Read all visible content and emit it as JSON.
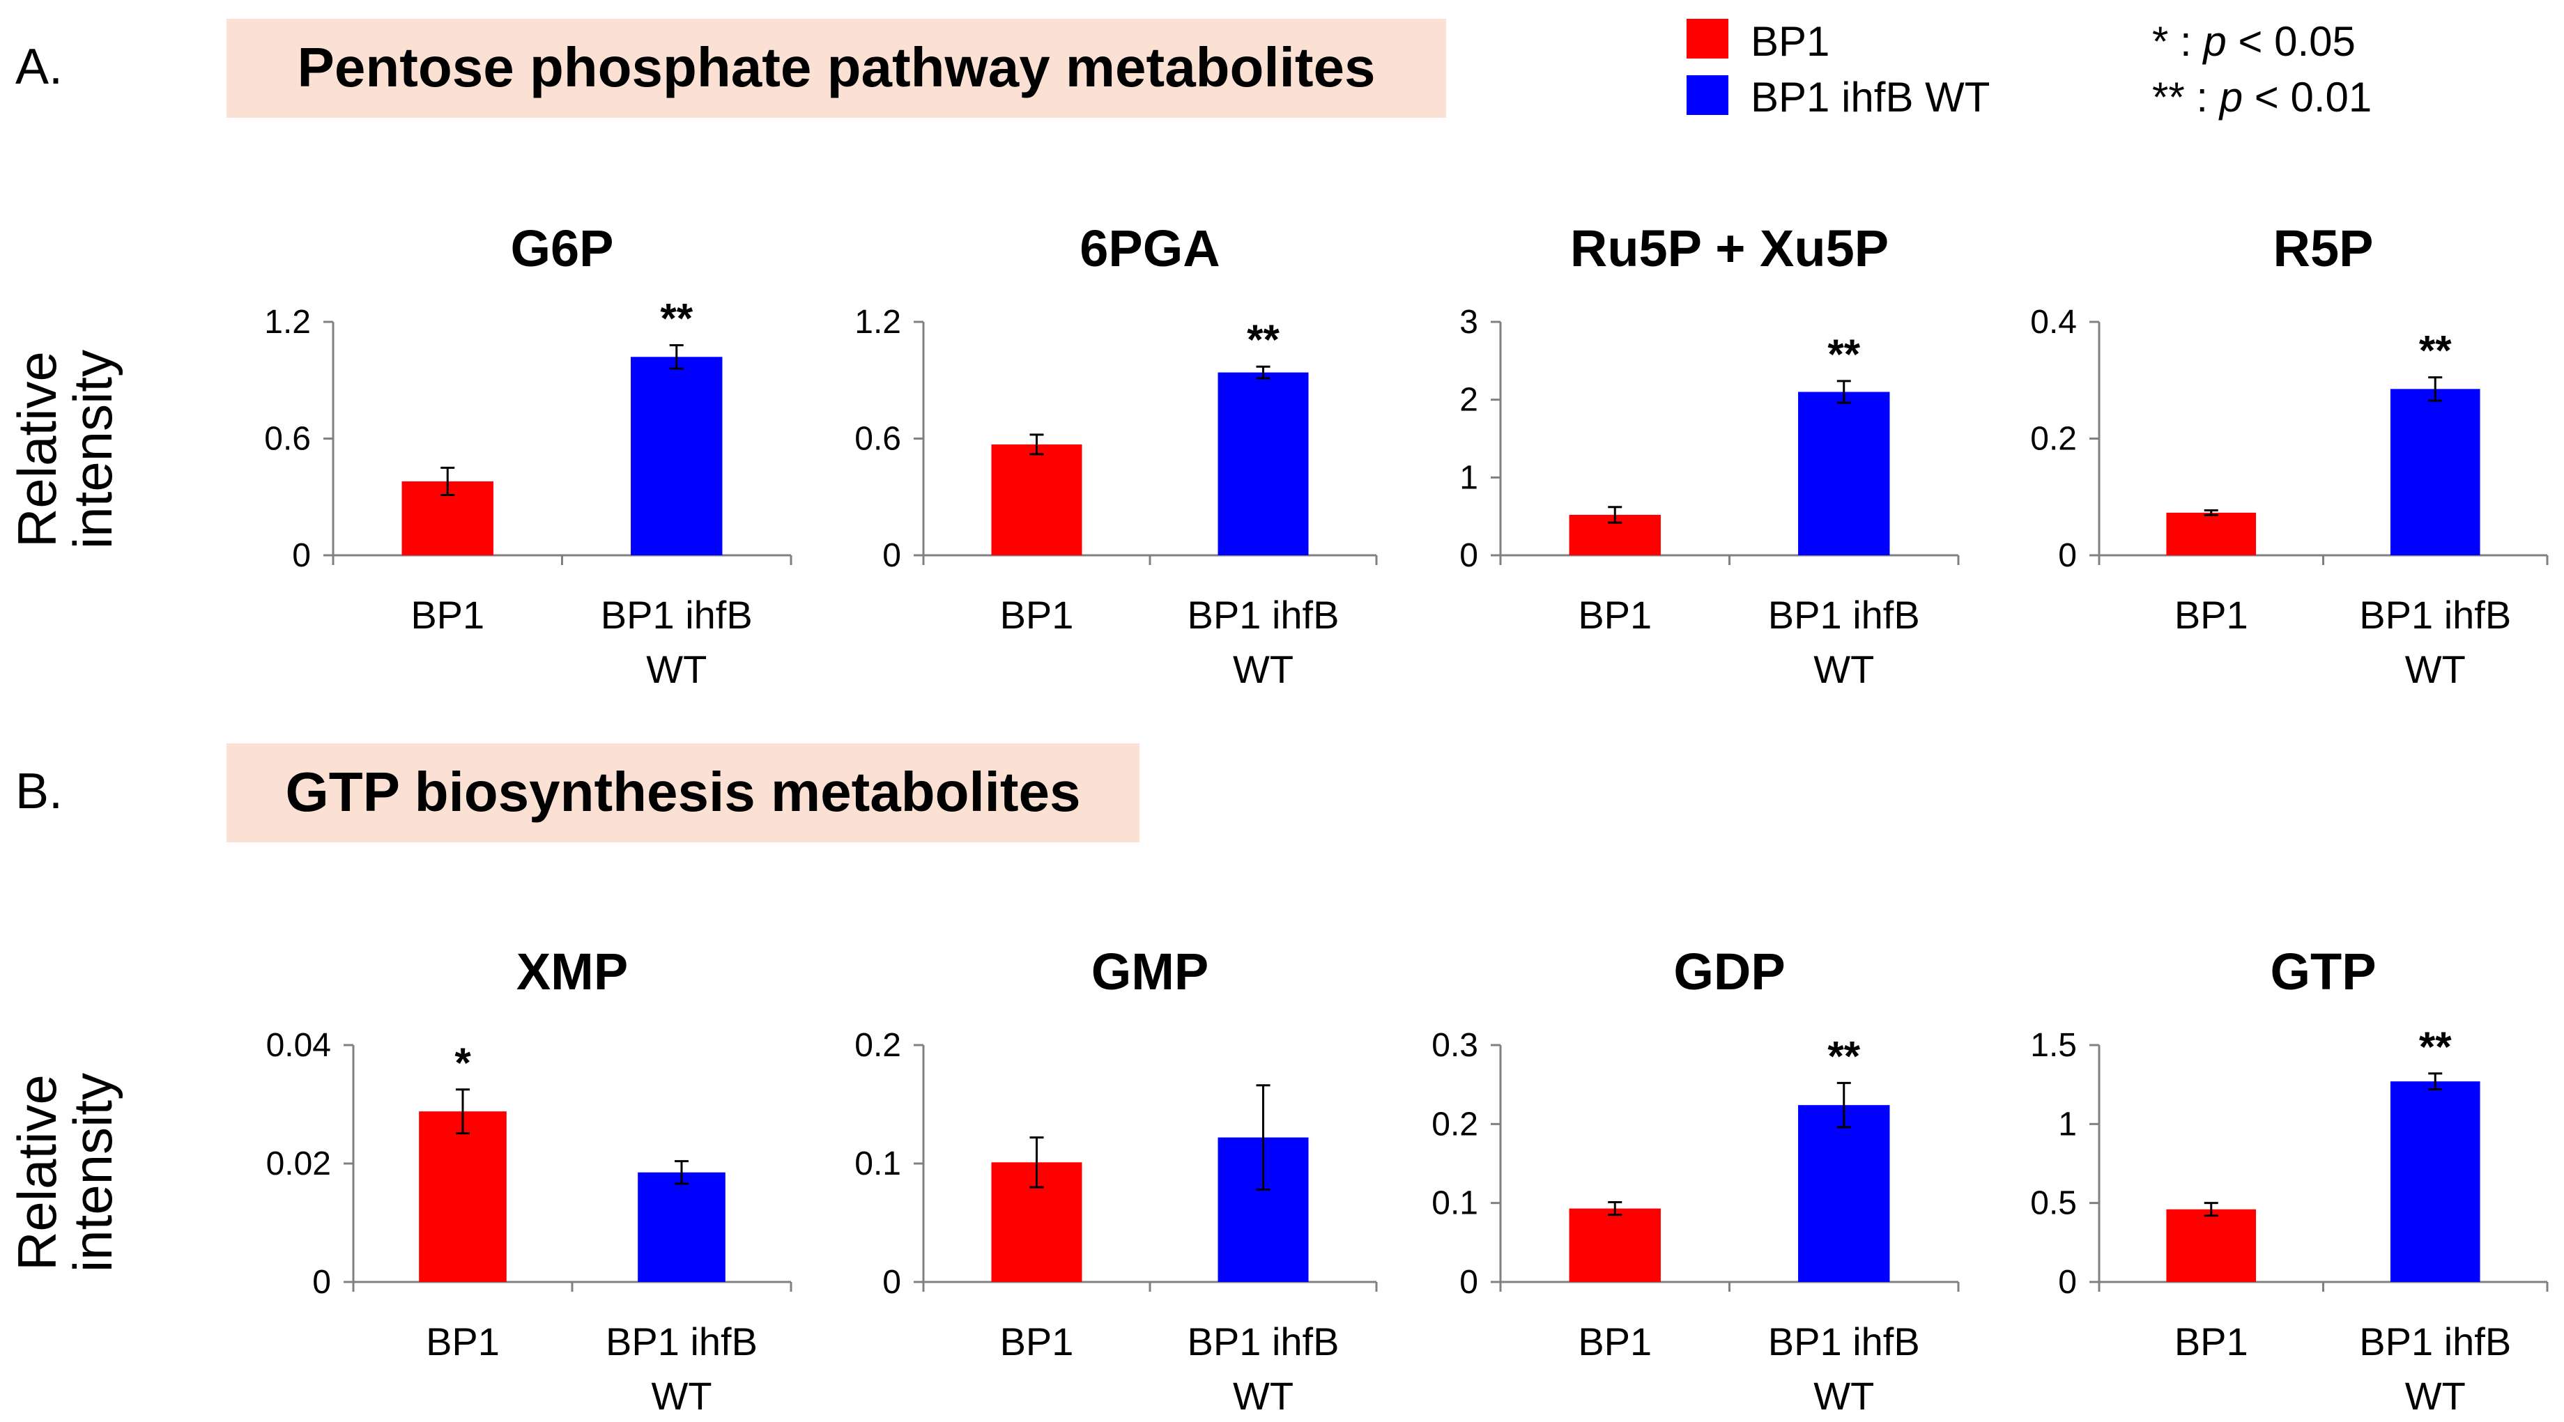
{
  "panels": [
    {
      "label": "A.",
      "heading": "Pentose phosphate pathway metabolites"
    },
    {
      "label": "B.",
      "heading": "GTP biosynthesis metabolites"
    }
  ],
  "legend": {
    "entries": [
      {
        "label": "BP1",
        "color": "#ff0000"
      },
      {
        "label": "BP1 ihfB WT",
        "color": "#0000ff"
      }
    ],
    "significance": [
      {
        "stars": "*",
        "sep": " : ",
        "p": "p",
        "rest": " < 0.05"
      },
      {
        "stars": "**",
        "sep": " : ",
        "p": "p",
        "rest": " < 0.01"
      }
    ]
  },
  "ylabel_lines": [
    "Relative",
    "intensity"
  ],
  "colors": {
    "bp1": "#ff0000",
    "ihfb": "#0000ff",
    "panel_bg": "#fbe1d4",
    "axis": "#808080"
  },
  "chart_data": [
    {
      "type": "bar",
      "title": "G6P",
      "categories": [
        [
          "BP1"
        ],
        [
          "BP1 ihfB",
          "WT"
        ]
      ],
      "values": [
        0.38,
        1.02
      ],
      "errors": [
        0.07,
        0.06
      ],
      "sig": [
        "",
        "**"
      ],
      "ylim": [
        0,
        1.2
      ],
      "yticks": [
        0,
        0.6,
        1.2
      ],
      "ytick_labels": [
        "0",
        "0.6",
        "1.2"
      ]
    },
    {
      "type": "bar",
      "title": "6PGA",
      "categories": [
        [
          "BP1"
        ],
        [
          "BP1 ihfB",
          "WT"
        ]
      ],
      "values": [
        0.57,
        0.94
      ],
      "errors": [
        0.05,
        0.03
      ],
      "sig": [
        "",
        "**"
      ],
      "ylim": [
        0,
        1.2
      ],
      "yticks": [
        0,
        0.6,
        1.2
      ],
      "ytick_labels": [
        "0",
        "0.6",
        "1.2"
      ]
    },
    {
      "type": "bar",
      "title": "Ru5P + Xu5P",
      "categories": [
        [
          "BP1"
        ],
        [
          "BP1 ihfB",
          "WT"
        ]
      ],
      "values": [
        0.52,
        2.1
      ],
      "errors": [
        0.1,
        0.14
      ],
      "sig": [
        "",
        "**"
      ],
      "ylim": [
        0,
        3
      ],
      "yticks": [
        0,
        1,
        2,
        3
      ],
      "ytick_labels": [
        "0",
        "1",
        "2",
        "3"
      ]
    },
    {
      "type": "bar",
      "title": "R5P",
      "categories": [
        [
          "BP1"
        ],
        [
          "BP1 ihfB",
          "WT"
        ]
      ],
      "values": [
        0.073,
        0.285
      ],
      "errors": [
        0.004,
        0.02
      ],
      "sig": [
        "",
        "**"
      ],
      "ylim": [
        0,
        0.4
      ],
      "yticks": [
        0,
        0.2,
        0.4
      ],
      "ytick_labels": [
        "0",
        "0.2",
        "0.4"
      ]
    },
    {
      "type": "bar",
      "title": "XMP",
      "categories": [
        [
          "BP1"
        ],
        [
          "BP1 ihfB",
          "WT"
        ]
      ],
      "values": [
        0.0288,
        0.0185
      ],
      "errors": [
        0.0037,
        0.0019
      ],
      "sig": [
        "*",
        ""
      ],
      "ylim": [
        0,
        0.04
      ],
      "yticks": [
        0,
        0.02,
        0.04
      ],
      "ytick_labels": [
        "0",
        "0.02",
        "0.04"
      ]
    },
    {
      "type": "bar",
      "title": "GMP",
      "categories": [
        [
          "BP1"
        ],
        [
          "BP1 ihfB",
          "WT"
        ]
      ],
      "values": [
        0.101,
        0.122
      ],
      "errors": [
        0.021,
        0.044
      ],
      "sig": [
        "",
        ""
      ],
      "ylim": [
        0,
        0.2
      ],
      "yticks": [
        0,
        0.1,
        0.2
      ],
      "ytick_labels": [
        "0",
        "0.1",
        "0.2"
      ]
    },
    {
      "type": "bar",
      "title": "GDP",
      "categories": [
        [
          "BP1"
        ],
        [
          "BP1 ihfB",
          "WT"
        ]
      ],
      "values": [
        0.093,
        0.224
      ],
      "errors": [
        0.008,
        0.028
      ],
      "sig": [
        "",
        "**"
      ],
      "ylim": [
        0,
        0.3
      ],
      "yticks": [
        0,
        0.1,
        0.2,
        0.3
      ],
      "ytick_labels": [
        "0",
        "0.1",
        "0.2",
        "0.3"
      ]
    },
    {
      "type": "bar",
      "title": "GTP",
      "categories": [
        [
          "BP1"
        ],
        [
          "BP1 ihfB",
          "WT"
        ]
      ],
      "values": [
        0.46,
        1.27
      ],
      "errors": [
        0.04,
        0.05
      ],
      "sig": [
        "",
        "**"
      ],
      "ylim": [
        0,
        1.5
      ],
      "yticks": [
        0,
        0.5,
        1,
        1.5
      ],
      "ytick_labels": [
        "0",
        "0.5",
        "1",
        "1.5"
      ]
    }
  ]
}
